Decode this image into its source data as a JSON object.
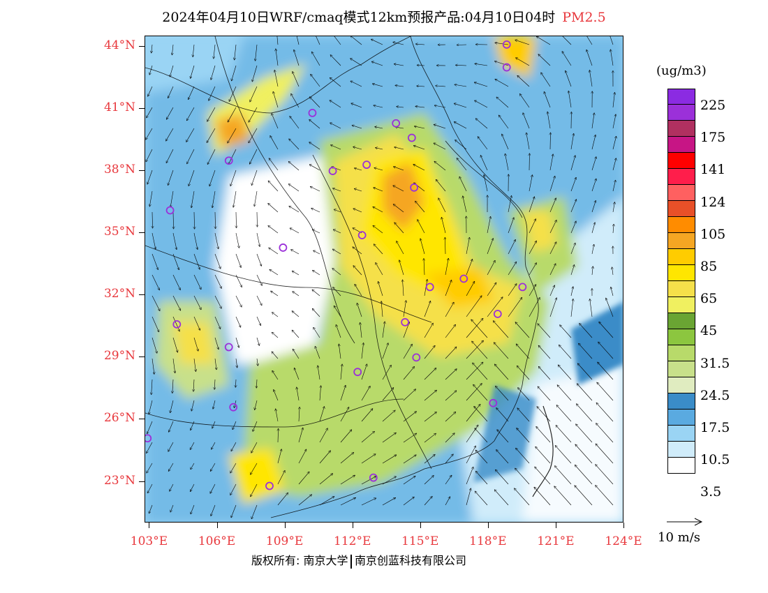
{
  "title": {
    "main": "2024年04月10日WRF/cmaq模式12km预报产品:04月10日04时",
    "variable": "PM2.5"
  },
  "map": {
    "projection": "lat-lon",
    "lon_range": [
      102.8,
      124
    ],
    "lat_range": [
      21,
      44.5
    ],
    "lat_labels": [
      "44°N",
      "41°N",
      "38°N",
      "35°N",
      "32°N",
      "29°N",
      "26°N",
      "23°N"
    ],
    "lat_values": [
      44,
      41,
      38,
      35,
      32,
      29,
      26,
      23
    ],
    "lon_labels": [
      "103°E",
      "106°E",
      "109°E",
      "112°E",
      "115°E",
      "118°E",
      "121°E",
      "124°E"
    ],
    "lon_values": [
      103,
      106,
      109,
      112,
      115,
      118,
      121,
      124
    ],
    "axis_label_color": "#e8383d",
    "stations": [
      {
        "lon": 118.8,
        "lat": 44.1
      },
      {
        "lon": 118.8,
        "lat": 43.0
      },
      {
        "lon": 110.2,
        "lon_label": "",
        "lat": 40.8
      },
      {
        "lon": 113.9,
        "lat": 40.3
      },
      {
        "lon": 114.6,
        "lat": 39.6
      },
      {
        "lon": 106.5,
        "lat": 38.5
      },
      {
        "lon": 111.1,
        "lat": 38.0
      },
      {
        "lon": 112.6,
        "lat": 38.3
      },
      {
        "lon": 114.7,
        "lat": 37.2
      },
      {
        "lon": 103.9,
        "lat": 36.1
      },
      {
        "lon": 112.4,
        "lat": 34.9
      },
      {
        "lon": 108.9,
        "lat": 34.3
      },
      {
        "lon": 115.4,
        "lat": 32.4
      },
      {
        "lon": 116.9,
        "lat": 32.8
      },
      {
        "lon": 119.5,
        "lat": 32.4
      },
      {
        "lon": 118.4,
        "lat": 31.1
      },
      {
        "lon": 114.3,
        "lat": 30.7
      },
      {
        "lon": 104.2,
        "lat": 30.6
      },
      {
        "lon": 106.5,
        "lat": 29.5
      },
      {
        "lon": 114.8,
        "lat": 29.0
      },
      {
        "lon": 112.2,
        "lat": 28.3
      },
      {
        "lon": 118.2,
        "lat": 26.8
      },
      {
        "lon": 106.7,
        "lat": 26.6
      },
      {
        "lon": 102.9,
        "lat": 25.1
      },
      {
        "lon": 112.9,
        "lat": 23.2
      },
      {
        "lon": 108.3,
        "lat": 22.8
      }
    ],
    "station_color": "#9b30d9"
  },
  "legend": {
    "unit": "(ug/m3)",
    "colors": [
      "#8b2be2",
      "#9b30d9",
      "#b03060",
      "#c71585",
      "#ff0000",
      "#ff1e4b",
      "#ff6060",
      "#e85028",
      "#ff8c00",
      "#f5a623",
      "#ffcc00",
      "#ffe600",
      "#f5e04a",
      "#f0f060",
      "#6aa533",
      "#8cc63f",
      "#b8da6a",
      "#c8e08a",
      "#e0ecc0",
      "#3a8cc8",
      "#5aaae0",
      "#9ad4f4",
      "#d0ecfa",
      "#ffffff"
    ],
    "labels": [
      "225",
      "175",
      "141",
      "124",
      "105",
      "85",
      "65",
      "45",
      "31.5",
      "24.5",
      "17.5",
      "10.5",
      "3.5"
    ]
  },
  "wind": {
    "scale_label": "10 m/s"
  },
  "footer": {
    "copyright_left": "版权所有: 南京大学",
    "copyright_right": "南京创蓝科技有限公司"
  }
}
